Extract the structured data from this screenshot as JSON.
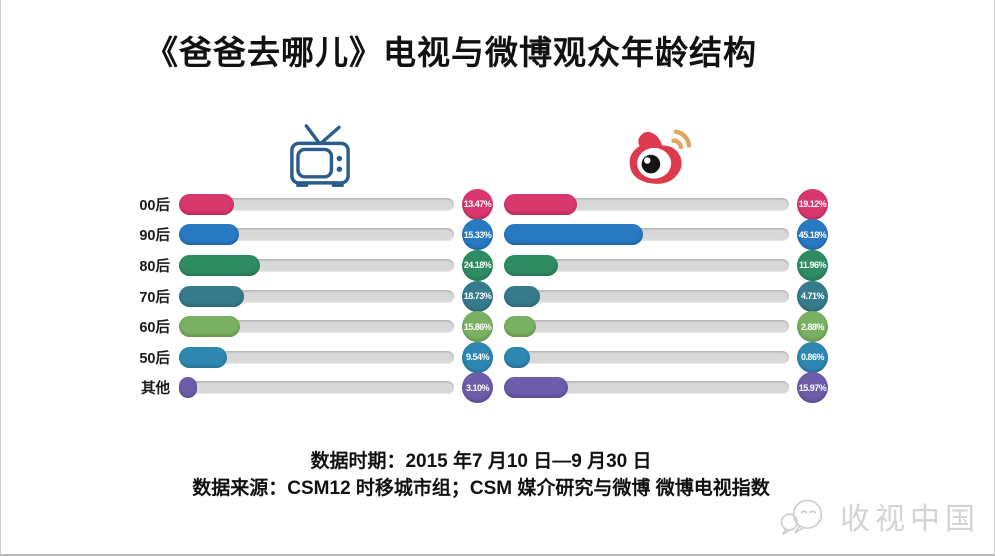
{
  "title": "《爸爸去哪儿》电视与微博观众年龄结构",
  "chart_data": {
    "type": "bar",
    "orientation": "horizontal",
    "categories": [
      "00后",
      "90后",
      "80后",
      "70后",
      "60后",
      "50后",
      "其他"
    ],
    "series": [
      {
        "name": "电视",
        "icon": "tv-icon",
        "values": [
          13.47,
          15.33,
          24.18,
          18.73,
          15.86,
          9.54,
          3.1
        ],
        "labels": [
          "13.47%",
          "15.33%",
          "24.18%",
          "18.73%",
          "15.86%",
          "9.54%",
          "3.10%"
        ],
        "fill_pct": [
          20.0,
          21.8,
          29.5,
          23.6,
          22.2,
          17.4,
          6.7
        ]
      },
      {
        "name": "微博",
        "icon": "weibo-icon",
        "values": [
          19.12,
          45.18,
          11.96,
          4.71,
          2.88,
          0.86,
          15.97
        ],
        "labels": [
          "19.12%",
          "45.18%",
          "11.96%",
          "4.71%",
          "2.88%",
          "0.86%",
          "15.97%"
        ],
        "fill_pct": [
          25.7,
          48.6,
          19.1,
          12.8,
          11.1,
          9.0,
          22.6
        ]
      }
    ],
    "row_colors": [
      "#d9386d",
      "#2779c2",
      "#2e8b62",
      "#357b8c",
      "#7ab061",
      "#2d87b1",
      "#6c5ca9"
    ],
    "track_color": "#d8d8d8",
    "grid": false,
    "legend_position": "icons-above-columns",
    "xlim": [
      0,
      100
    ]
  },
  "icons": {
    "tv_color": "#2b5d8c",
    "weibo_red": "#dd3b4d",
    "weibo_orange": "#e2a45f",
    "watermark_gray": "#cfcfcf"
  },
  "footer": {
    "period": "数据时期：2015 年7 月10 日—9 月30 日",
    "source": "数据来源：CSM12 时移城市组；CSM 媒介研究与微博 微博电视指数"
  },
  "watermark": {
    "text": "收视中国",
    "icon": "wechat-icon"
  }
}
